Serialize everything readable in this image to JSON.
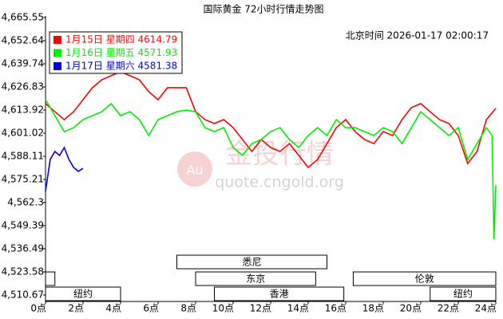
{
  "chart_data": {
    "type": "line",
    "title": "国际黄金 72小时行情走势图",
    "subtitle": "北京时间 2026-01-17 02:00:17",
    "watermark": {
      "logo": "Au",
      "brand": "金投行情",
      "url": "quote.cngold.org"
    },
    "xlim": [
      0,
      24
    ],
    "xticks": [
      {
        "value": 0,
        "label": "0点"
      },
      {
        "value": 2,
        "label": "2点"
      },
      {
        "value": 4,
        "label": "4点"
      },
      {
        "value": 6,
        "label": "6点"
      },
      {
        "value": 8,
        "label": "8点"
      },
      {
        "value": 10,
        "label": "10点"
      },
      {
        "value": 12,
        "label": "12点"
      },
      {
        "value": 14,
        "label": "14点"
      },
      {
        "value": 16,
        "label": "16点"
      },
      {
        "value": 18,
        "label": "18点"
      },
      {
        "value": 20,
        "label": "20点"
      },
      {
        "value": 22,
        "label": "22点"
      },
      {
        "value": 24,
        "label": "24点"
      }
    ],
    "ylim": [
      4510.67,
      4665.55
    ],
    "yticks": [
      {
        "value": 4510.67,
        "label": "4,510.67"
      },
      {
        "value": 4523.58,
        "label": "4,523.58"
      },
      {
        "value": 4536.49,
        "label": "4,536.49"
      },
      {
        "value": 4549.39,
        "label": "4,549.39"
      },
      {
        "value": 4562.3,
        "label": "4,562.3"
      },
      {
        "value": 4575.21,
        "label": "4,575.21"
      },
      {
        "value": 4588.11,
        "label": "4,588.11"
      },
      {
        "value": 4601.02,
        "label": "4,601.02"
      },
      {
        "value": 4613.92,
        "label": "4,613.92"
      },
      {
        "value": 4626.83,
        "label": "4,626.83"
      },
      {
        "value": 4639.74,
        "label": "4,639.74"
      },
      {
        "value": 4652.64,
        "label": "4,652.64"
      },
      {
        "value": 4665.55,
        "label": "4,665.55"
      }
    ],
    "grid": false,
    "legend": "top-left",
    "series": [
      {
        "name": "1月15日 星期四 4614.79",
        "color": "#ff0000",
        "x": [
          0,
          0.5,
          1,
          1.5,
          2,
          2.5,
          3,
          3.5,
          4,
          4.5,
          5,
          5.5,
          6,
          6.5,
          7,
          7.5,
          8,
          8.5,
          9,
          9.5,
          10,
          10.5,
          11,
          11.5,
          12,
          12.5,
          13,
          13.5,
          14,
          14.5,
          15,
          15.5,
          16,
          16.5,
          17,
          17.5,
          18,
          18.5,
          19,
          19.5,
          20,
          20.5,
          21,
          21.5,
          22,
          22.5,
          23,
          23.5,
          24
        ],
        "values": [
          4617.5,
          4613.0,
          4608.6,
          4613.0,
          4619.7,
          4626.4,
          4630.8,
          4633.1,
          4635.3,
          4633.1,
          4630.8,
          4624.2,
          4619.7,
          4626.4,
          4626.4,
          4626.4,
          4613.0,
          4608.6,
          4606.4,
          4608.6,
          4604.1,
          4597.5,
          4590.8,
          4597.5,
          4593.0,
          4590.8,
          4595.2,
          4588.6,
          4581.9,
          4586.3,
          4595.2,
          4604.1,
          4608.6,
          4601.9,
          4597.5,
          4595.2,
          4601.9,
          4599.7,
          4608.6,
          4615.3,
          4617.5,
          4613.0,
          4608.6,
          4606.4,
          4599.7,
          4584.1,
          4590.8,
          4608.6,
          4614.8
        ]
      },
      {
        "name": "1月16日 星期五 4571.93",
        "color": "#00ee00",
        "x": [
          0,
          0.5,
          1,
          1.5,
          2,
          2.5,
          3,
          3.5,
          4,
          4.5,
          5,
          5.5,
          6,
          6.5,
          7,
          7.5,
          8,
          8.5,
          9,
          9.5,
          10,
          10.5,
          11,
          11.5,
          12,
          12.5,
          13,
          13.5,
          14,
          14.5,
          15,
          15.5,
          16,
          16.5,
          17,
          17.5,
          18,
          18.5,
          19,
          19.5,
          20,
          20.5,
          21,
          21.5,
          22,
          22.5,
          23,
          23.5,
          23.8,
          23.9,
          24
        ],
        "values": [
          4619.7,
          4610.8,
          4601.9,
          4604.1,
          4608.6,
          4610.8,
          4613.0,
          4617.5,
          4610.8,
          4613.0,
          4608.6,
          4599.7,
          4608.6,
          4610.8,
          4613.0,
          4613.9,
          4613.0,
          4604.1,
          4601.9,
          4604.1,
          4593.0,
          4588.6,
          4595.2,
          4597.5,
          4601.9,
          4604.1,
          4597.5,
          4593.0,
          4599.7,
          4604.1,
          4599.7,
          4608.6,
          4604.1,
          4604.1,
          4601.9,
          4599.7,
          4604.1,
          4601.9,
          4595.2,
          4604.1,
          4613.0,
          4608.6,
          4604.1,
          4599.7,
          4604.1,
          4586.3,
          4595.2,
          4604.1,
          4599.7,
          4541.8,
          4571.9
        ]
      },
      {
        "name": "1月17日 星期六 4581.38",
        "color": "#0000dd",
        "x": [
          0,
          0.25,
          0.5,
          0.75,
          1,
          1.25,
          1.5,
          1.75,
          2
        ],
        "values": [
          4568.5,
          4586.3,
          4590.8,
          4588.6,
          4593.0,
          4586.3,
          4581.9,
          4579.7,
          4581.4
        ]
      }
    ],
    "sessions": [
      {
        "label": "悉尼",
        "start": 7,
        "end": 15
      },
      {
        "label": "东京",
        "start": 8,
        "end": 14.4
      },
      {
        "label": "香港",
        "start": 9,
        "end": 15.9
      },
      {
        "label": null,
        "start": 0,
        "end": 0.5
      },
      {
        "label": "伦敦",
        "start": 16.4,
        "end": 24
      },
      {
        "label": "纽约",
        "start": 0,
        "end": 4
      },
      {
        "label": "纽约",
        "start": 20.5,
        "end": 24
      }
    ]
  }
}
